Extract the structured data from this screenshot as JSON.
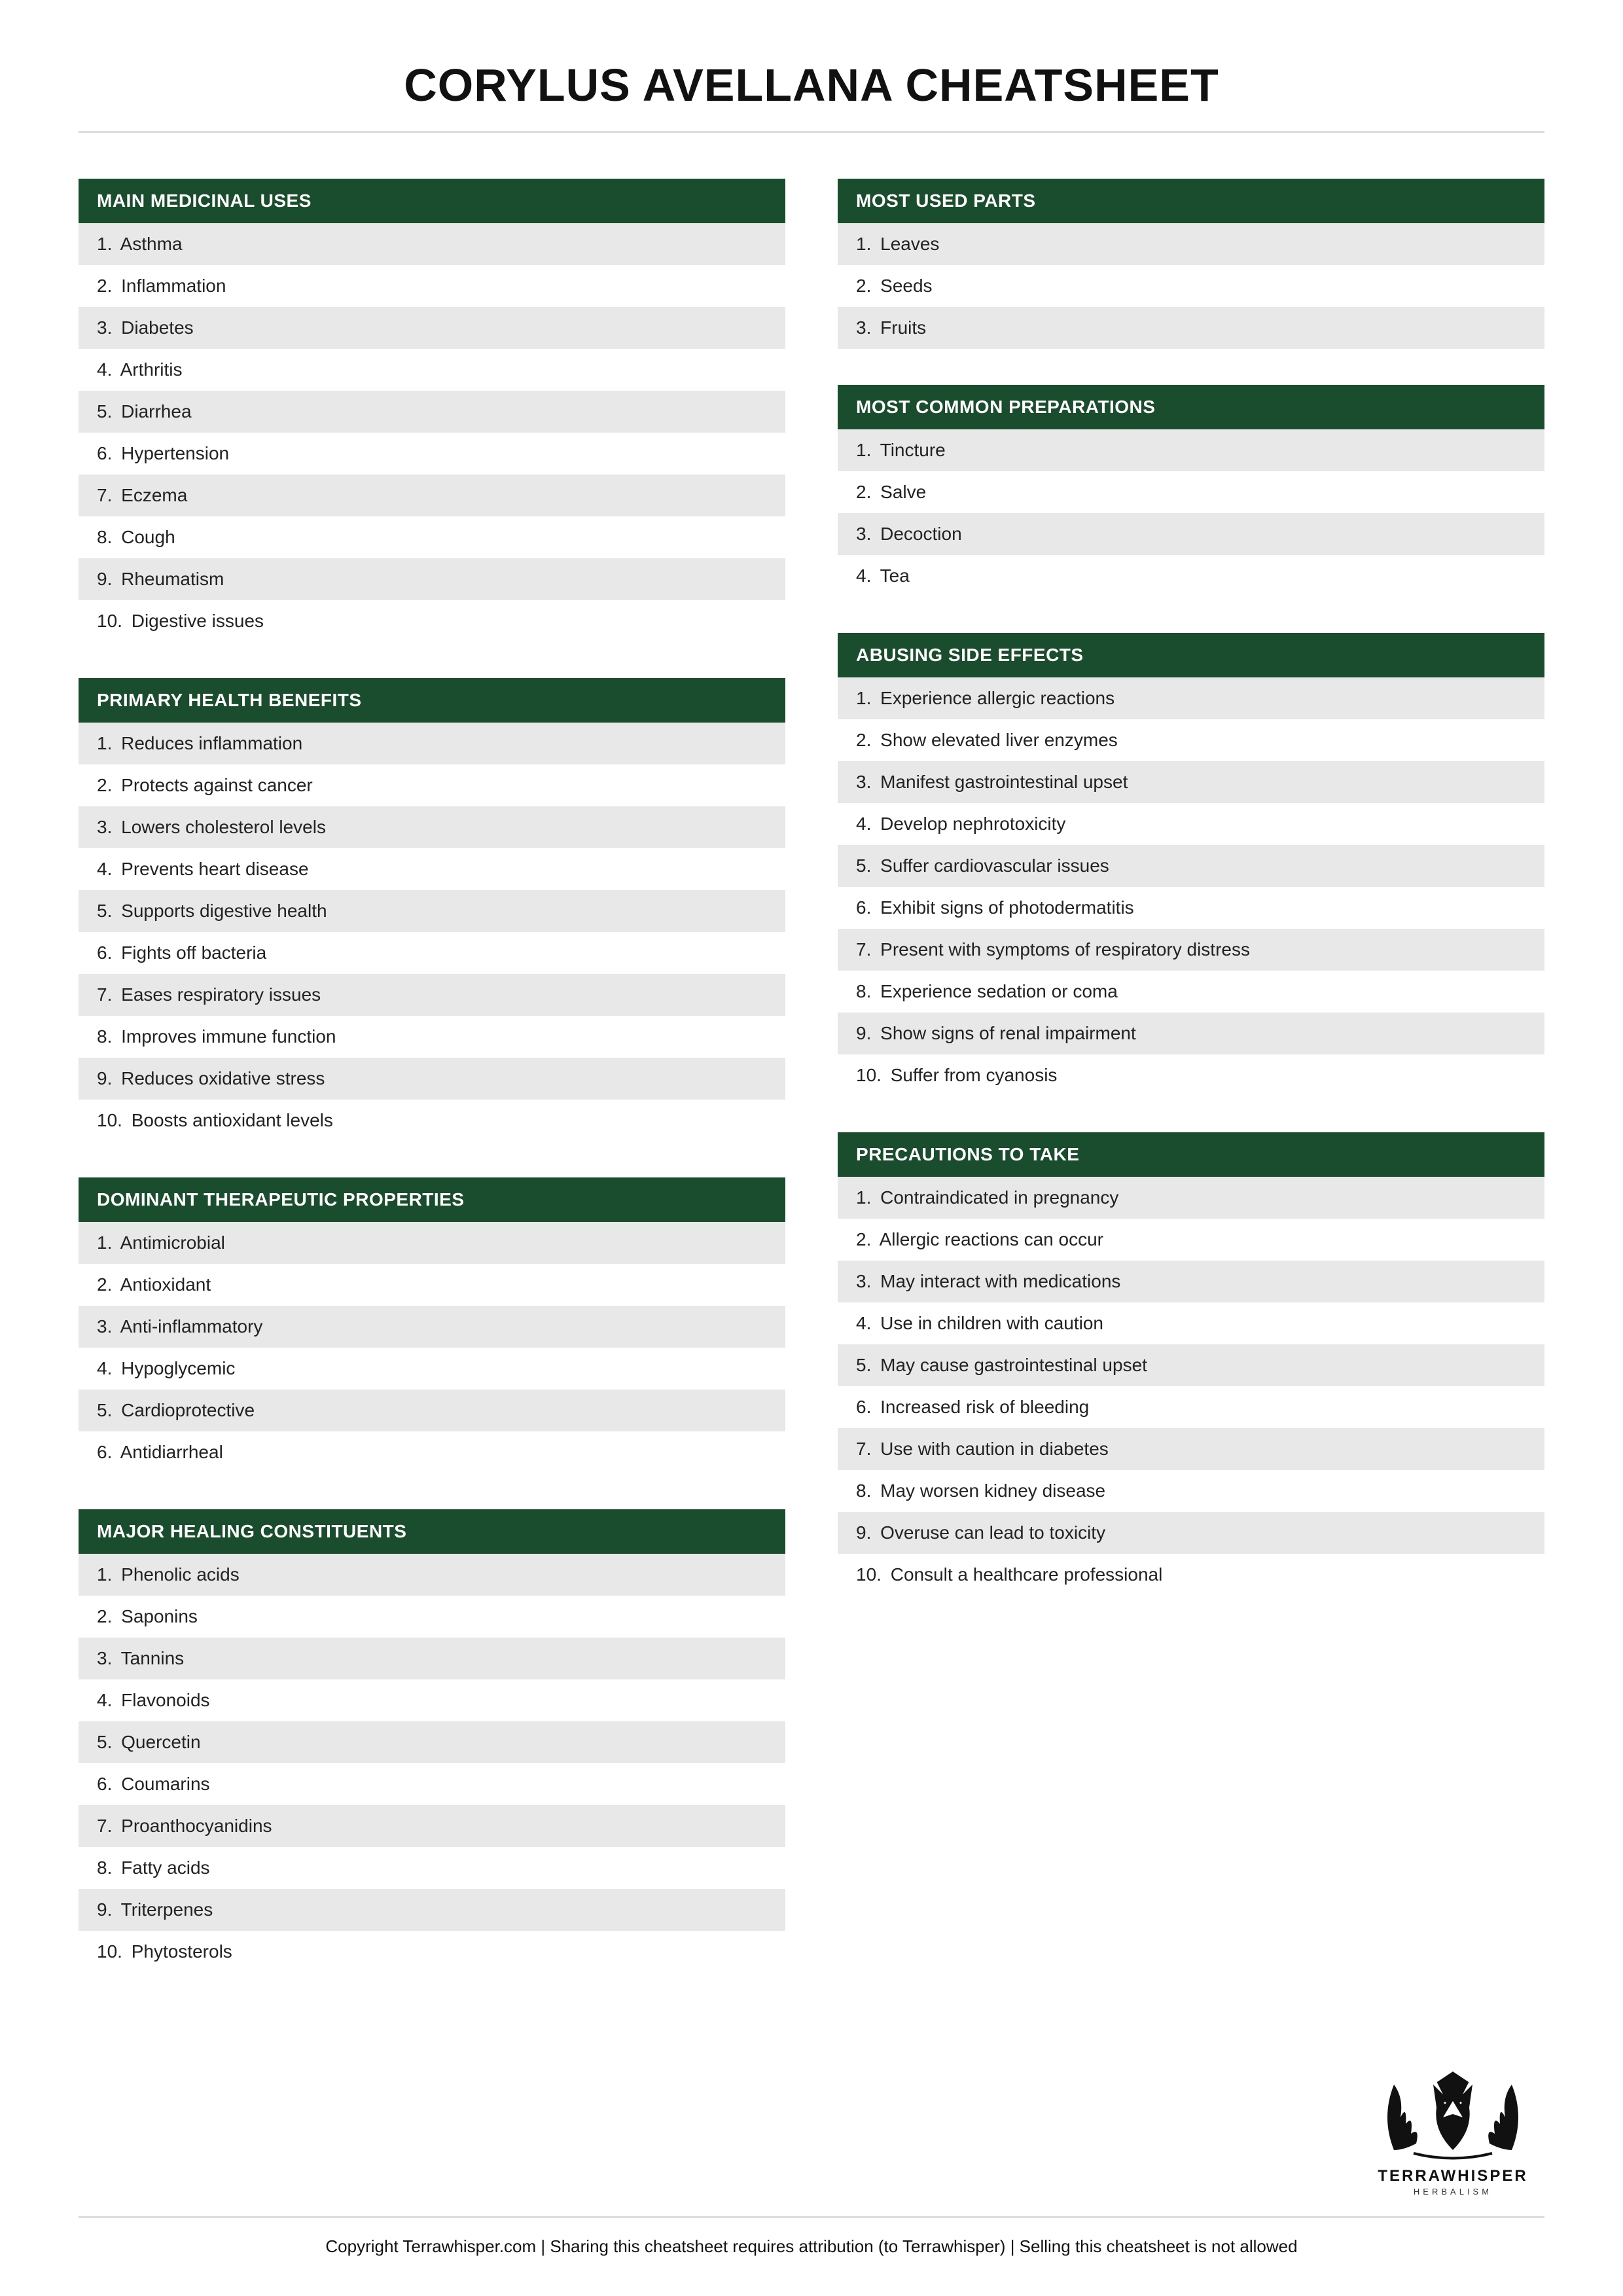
{
  "title": "CORYLUS AVELLANA CHEATSHEET",
  "colors": {
    "header_bg": "#1a4d2e",
    "header_text": "#ffffff",
    "row_alt_bg": "#e8e8e8",
    "row_bg": "#ffffff",
    "divider": "#dddddd",
    "text": "#111111"
  },
  "left": [
    {
      "title": "MAIN MEDICINAL USES",
      "items": [
        "Asthma",
        "Inflammation",
        "Diabetes",
        "Arthritis",
        "Diarrhea",
        "Hypertension",
        "Eczema",
        "Cough",
        "Rheumatism",
        "Digestive issues"
      ]
    },
    {
      "title": "PRIMARY HEALTH BENEFITS",
      "items": [
        "Reduces inflammation",
        "Protects against cancer",
        "Lowers cholesterol levels",
        "Prevents heart disease",
        "Supports digestive health",
        "Fights off bacteria",
        "Eases respiratory issues",
        "Improves immune function",
        "Reduces oxidative stress",
        "Boosts antioxidant levels"
      ]
    },
    {
      "title": "DOMINANT THERAPEUTIC PROPERTIES",
      "items": [
        "Antimicrobial",
        "Antioxidant",
        "Anti-inflammatory",
        "Hypoglycemic",
        "Cardioprotective",
        "Antidiarrheal"
      ]
    },
    {
      "title": "MAJOR HEALING CONSTITUENTS",
      "items": [
        "Phenolic acids",
        "Saponins",
        "Tannins",
        "Flavonoids",
        "Quercetin",
        "Coumarins",
        "Proanthocyanidins",
        "Fatty acids",
        "Triterpenes",
        "Phytosterols"
      ]
    }
  ],
  "right": [
    {
      "title": "MOST USED PARTS",
      "items": [
        "Leaves",
        "Seeds",
        "Fruits"
      ]
    },
    {
      "title": "MOST COMMON PREPARATIONS",
      "items": [
        "Tincture",
        "Salve",
        "Decoction",
        "Tea"
      ]
    },
    {
      "title": "ABUSING SIDE EFFECTS",
      "items": [
        "Experience allergic reactions",
        "Show elevated liver enzymes",
        "Manifest gastrointestinal upset",
        "Develop nephrotoxicity",
        "Suffer cardiovascular issues",
        "Exhibit signs of photodermatitis",
        "Present with symptoms of respiratory distress",
        "Experience sedation or coma",
        "Show signs of renal impairment",
        "Suffer from cyanosis"
      ]
    },
    {
      "title": "PRECAUTIONS TO TAKE",
      "items": [
        "Contraindicated in pregnancy",
        "Allergic reactions can occur",
        "May interact with medications",
        "Use in children with caution",
        "May cause gastrointestinal upset",
        "Increased risk of bleeding",
        "Use with caution in diabetes",
        "May worsen kidney disease",
        "Overuse can lead to toxicity",
        "Consult a healthcare professional"
      ]
    }
  ],
  "logo": {
    "name": "TERRAWHISPER",
    "sub": "HERBALISM"
  },
  "footer": "Copyright Terrawhisper.com | Sharing this cheatsheet requires attribution (to Terrawhisper) | Selling this cheatsheet is not allowed"
}
